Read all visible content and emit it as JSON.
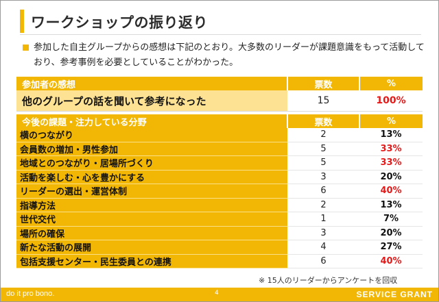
{
  "slide": {
    "title": "ワークショップの振り返り",
    "intro": "参加した自主グループからの感想は下記のとおり。大多数のリーダーが課題意識をもって活動しており、参考事例を必要としていることがわかった。",
    "note": "※ 15人のリーダーからアンケートを回収",
    "footer_left": "do it pro bono.",
    "footer_page": "4",
    "footer_right": "SERVICE GRANT",
    "accent_color": "#f2b705",
    "highlight_color": "#e31a1a"
  },
  "table1": {
    "headers": [
      "参加者の感想",
      "票数",
      "%"
    ],
    "rows": [
      {
        "label": "他のグループの話を聞いて参考になった",
        "votes": "15",
        "pct": "100%"
      }
    ]
  },
  "table2": {
    "headers": [
      "今後の課題・注力している分野",
      "票数",
      "%"
    ],
    "rows": [
      {
        "label": "横のつながり",
        "votes": "2",
        "pct": "13%"
      },
      {
        "label": "会員数の増加・男性参加",
        "votes": "5",
        "pct": "33%"
      },
      {
        "label": "地域とのつながり・居場所づくり",
        "votes": "5",
        "pct": "33%"
      },
      {
        "label": "活動を楽しむ・心を豊かにする",
        "votes": "3",
        "pct": "20%"
      },
      {
        "label": "リーダーの選出・運営体制",
        "votes": "6",
        "pct": "40%"
      },
      {
        "label": "指導方法",
        "votes": "2",
        "pct": "13%"
      },
      {
        "label": "世代交代",
        "votes": "1",
        "pct": "7%"
      },
      {
        "label": "場所の確保",
        "votes": "3",
        "pct": "20%"
      },
      {
        "label": "新たな活動の展開",
        "votes": "4",
        "pct": "27%"
      },
      {
        "label": "包括支援センター・民生委員との連携",
        "votes": "6",
        "pct": "40%"
      }
    ]
  }
}
